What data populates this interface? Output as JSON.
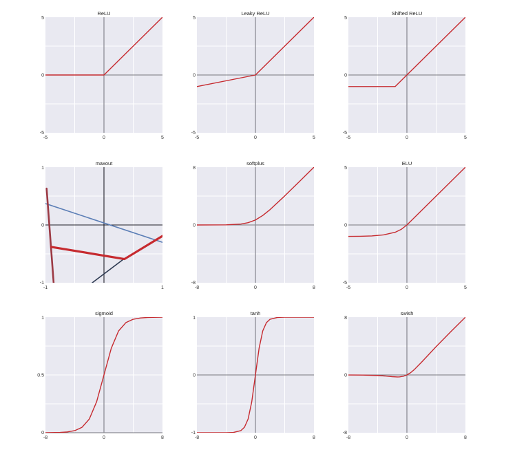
{
  "colors": {
    "background": "#e9e9f1",
    "grid": "#ffffff",
    "curve": "#c62a2f",
    "axis_grey": "#8d8d95",
    "axis_black": "#1e1e28",
    "maxout_blue": "#5b7eb6",
    "maxout_navy": "#2e3a52"
  },
  "chart_data": [
    {
      "type": "line",
      "title": "ReLU",
      "xlim": [
        -5,
        5
      ],
      "ylim": [
        -5,
        5
      ],
      "xticks": [
        "-5",
        "0",
        "5"
      ],
      "yticks": [
        "5",
        "0",
        "-5"
      ],
      "grid": true,
      "series": [
        {
          "x": [
            -5,
            0,
            5
          ],
          "y": [
            0,
            0,
            5
          ]
        }
      ]
    },
    {
      "type": "line",
      "title": "Leaky ReLU",
      "xlim": [
        -5,
        5
      ],
      "ylim": [
        -5,
        5
      ],
      "xticks": [
        "-5",
        "0",
        "5"
      ],
      "yticks": [
        "5",
        "0",
        "-5"
      ],
      "grid": true,
      "series": [
        {
          "x": [
            -5,
            0,
            5
          ],
          "y": [
            -1,
            0,
            5
          ]
        }
      ]
    },
    {
      "type": "line",
      "title": "Shifted ReLU",
      "xlim": [
        -5,
        5
      ],
      "ylim": [
        -5,
        5
      ],
      "xticks": [
        "-5",
        "0",
        "5"
      ],
      "yticks": [
        "5",
        "0",
        "-5"
      ],
      "grid": true,
      "series": [
        {
          "x": [
            -5,
            -1,
            5
          ],
          "y": [
            -1,
            -1,
            5
          ]
        }
      ]
    },
    {
      "type": "line",
      "title": "maxout",
      "xlim": [
        -1,
        1
      ],
      "ylim": [
        -1,
        1
      ],
      "xticks": [
        "-1",
        "",
        "1"
      ],
      "yticks": [
        "1",
        "0",
        "-1"
      ],
      "grid": true,
      "series": [
        {
          "x": [
            -1,
            1
          ],
          "y": [
            0.37,
            -0.3
          ]
        },
        {
          "x": [
            -0.2,
            0.35
          ],
          "y": [
            -1,
            -0.58
          ]
        },
        {
          "x": [
            -0.98,
            -0.86
          ],
          "y": [
            0.63,
            -1
          ]
        },
        {
          "x": [
            -0.9,
            0.35,
            1
          ],
          "y": [
            -0.38,
            -0.59,
            -0.19
          ]
        }
      ]
    },
    {
      "type": "line",
      "title": "softplus",
      "xlim": [
        -8,
        8
      ],
      "ylim": [
        -8,
        8
      ],
      "xticks": [
        "-8",
        "0",
        "8"
      ],
      "yticks": [
        "8",
        "0",
        "-8"
      ],
      "grid": true,
      "series": [
        {
          "x": [
            -8,
            -6,
            -4,
            -2,
            -1,
            0,
            1,
            2,
            4,
            6,
            8
          ],
          "y": [
            0,
            0.0025,
            0.018,
            0.127,
            0.313,
            0.693,
            1.313,
            2.127,
            4.018,
            6.002,
            8
          ]
        }
      ]
    },
    {
      "type": "line",
      "title": "ELU",
      "xlim": [
        -5,
        5
      ],
      "ylim": [
        -5,
        5
      ],
      "xticks": [
        "-5",
        "0",
        "5"
      ],
      "yticks": [
        "5",
        "0",
        "-5"
      ],
      "grid": true,
      "series": [
        {
          "x": [
            -5,
            -4,
            -3,
            -2,
            -1,
            -0.5,
            0,
            5
          ],
          "y": [
            -0.99,
            -0.98,
            -0.95,
            -0.86,
            -0.63,
            -0.39,
            0,
            5
          ]
        }
      ]
    },
    {
      "type": "line",
      "title": "sigmoid",
      "xlim": [
        -8,
        8
      ],
      "ylim": [
        0,
        1
      ],
      "xticks": [
        "-8",
        "0",
        "8"
      ],
      "yticks": [
        "1",
        "0.5",
        "0"
      ],
      "grid": true,
      "series": [
        {
          "x": [
            -8,
            -6,
            -5,
            -4,
            -3,
            -2,
            -1,
            0,
            1,
            2,
            3,
            4,
            5,
            6,
            8
          ],
          "y": [
            0.0003,
            0.0025,
            0.0067,
            0.018,
            0.047,
            0.119,
            0.269,
            0.5,
            0.731,
            0.881,
            0.953,
            0.982,
            0.993,
            0.9975,
            0.9997
          ]
        }
      ]
    },
    {
      "type": "line",
      "title": "tanh",
      "xlim": [
        -8,
        8
      ],
      "ylim": [
        -1,
        1
      ],
      "xticks": [
        "-8",
        "0",
        "8"
      ],
      "yticks": [
        "1",
        "0",
        "-1"
      ],
      "grid": true,
      "series": [
        {
          "x": [
            -8,
            -4,
            -3,
            -2,
            -1.5,
            -1,
            -0.5,
            0,
            0.5,
            1,
            1.5,
            2,
            3,
            4,
            8
          ],
          "y": [
            -1,
            -0.999,
            -0.995,
            -0.964,
            -0.905,
            -0.762,
            -0.462,
            0,
            0.462,
            0.762,
            0.905,
            0.964,
            0.995,
            0.999,
            1
          ]
        }
      ]
    },
    {
      "type": "line",
      "title": "swish",
      "xlim": [
        -8,
        8
      ],
      "ylim": [
        -8,
        8
      ],
      "xticks": [
        "-8",
        "0",
        "8"
      ],
      "yticks": [
        "8",
        "0",
        "-8"
      ],
      "grid": true,
      "series": [
        {
          "x": [
            -8,
            -6,
            -4,
            -3,
            -2,
            -1.3,
            -1,
            -0.5,
            0,
            0.5,
            1,
            2,
            4,
            6,
            8
          ],
          "y": [
            -0.003,
            -0.015,
            -0.072,
            -0.142,
            -0.238,
            -0.278,
            -0.269,
            -0.189,
            0,
            0.311,
            0.731,
            1.762,
            3.928,
            5.985,
            7.997
          ]
        }
      ]
    }
  ]
}
